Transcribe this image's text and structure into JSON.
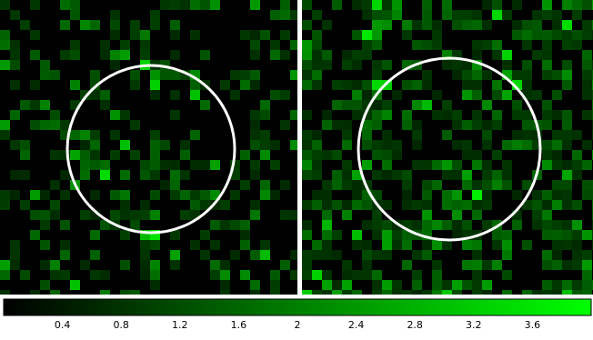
{
  "images": [
    {
      "name": "left-image",
      "region_circle": true
    },
    {
      "name": "right-image",
      "region_circle": true
    }
  ],
  "colormap": {
    "low": "#000000",
    "high": "#00ff00",
    "circle_color": "#ffffff"
  },
  "colorbar": {
    "min": 0,
    "max": 4.0,
    "ticks": [
      "0.4",
      "0.8",
      "1.2",
      "1.6",
      "2",
      "2.4",
      "2.8",
      "3.2",
      "3.6"
    ]
  }
}
